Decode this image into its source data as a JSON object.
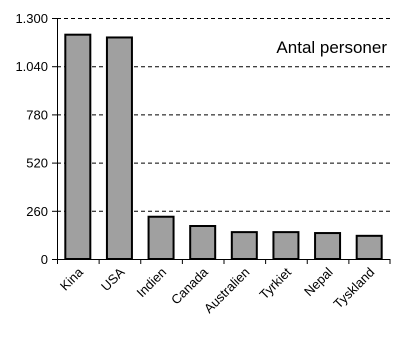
{
  "chart_data": {
    "type": "bar",
    "title": "Antal personer",
    "categories": [
      "Kina",
      "USA",
      "Indien",
      "Canada",
      "Australien",
      "Tyrkiet",
      "Nepal",
      "Tyskland"
    ],
    "values": [
      1210,
      1195,
      228,
      178,
      145,
      145,
      140,
      125
    ],
    "ylim": [
      0,
      1300
    ],
    "yticks": [
      0,
      260,
      520,
      780,
      1040,
      1300
    ],
    "ytick_labels": [
      "0",
      "260",
      "520",
      "780",
      "1.040",
      "1.300"
    ],
    "xlabel": "",
    "ylabel": "",
    "grid": "horizontal dashed",
    "legend": "none",
    "colors": {
      "bar_fill": "#a0a0a0",
      "bar_stroke": "#000000",
      "grid": "#000000"
    }
  }
}
